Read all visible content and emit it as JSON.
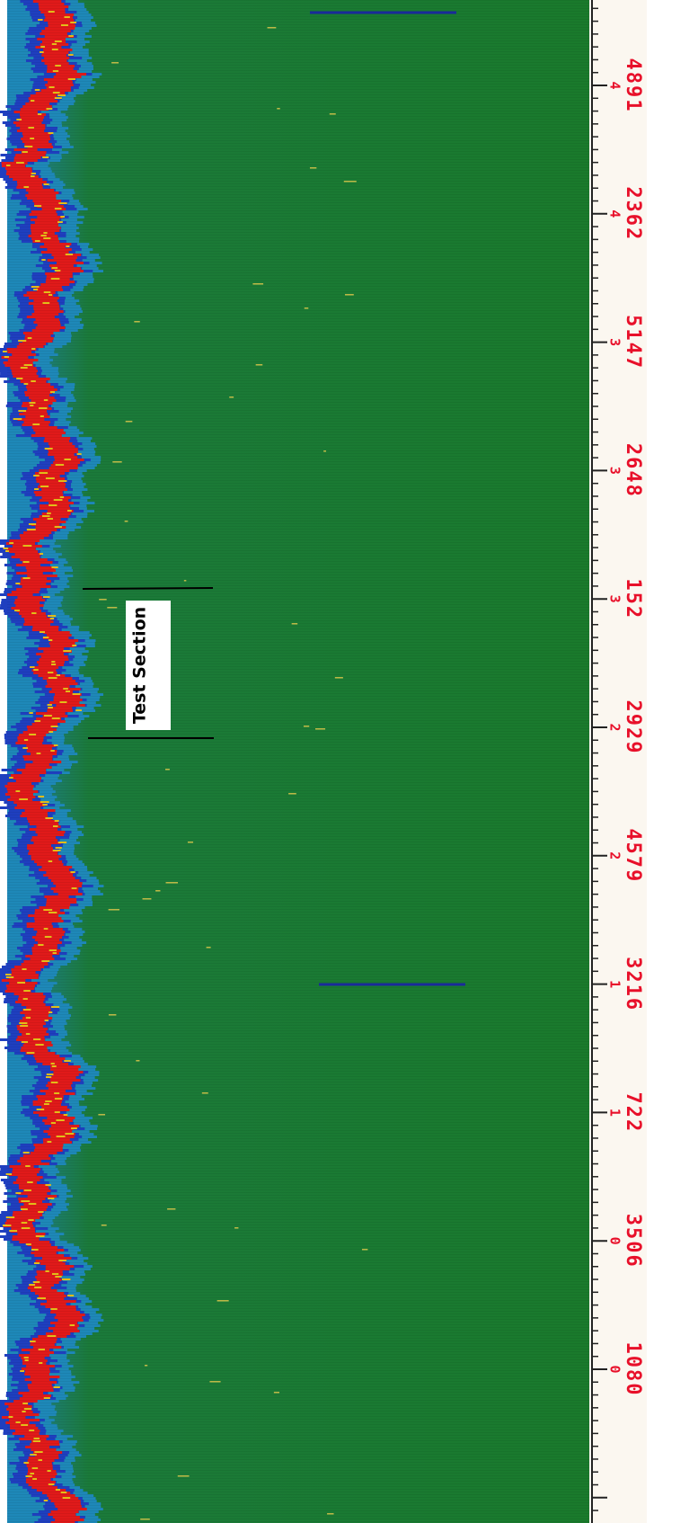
{
  "annotation": {
    "label": "Test Section"
  },
  "ruler": {
    "marks": [
      {
        "major": "4",
        "minor": "4891"
      },
      {
        "major": "4",
        "minor": "2362"
      },
      {
        "major": "3",
        "minor": "5147"
      },
      {
        "major": "3",
        "minor": "2648"
      },
      {
        "major": "3",
        "minor": "152"
      },
      {
        "major": "2",
        "minor": "2929"
      },
      {
        "major": "2",
        "minor": "4579"
      },
      {
        "major": "1",
        "minor": "3216"
      },
      {
        "major": "1",
        "minor": "722"
      },
      {
        "major": "0",
        "minor": "3506"
      },
      {
        "major": "0",
        "minor": "1080"
      }
    ]
  }
}
